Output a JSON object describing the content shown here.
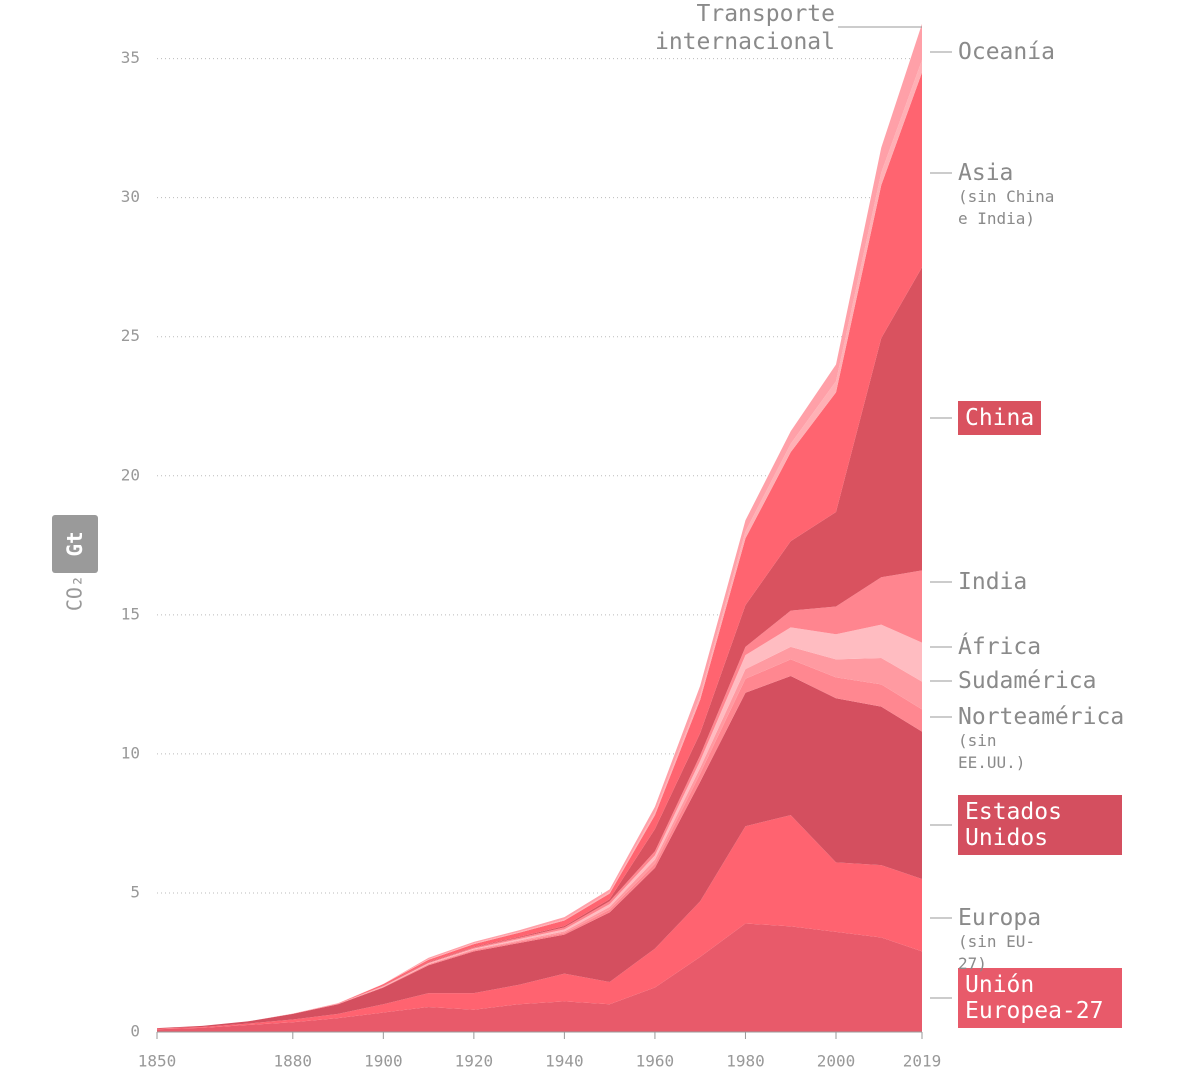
{
  "chart_data": {
    "type": "stacked_area",
    "y_label": "CO₂",
    "y_unit": "Gt",
    "x": [
      1850,
      1860,
      1870,
      1880,
      1890,
      1900,
      1910,
      1920,
      1930,
      1940,
      1950,
      1960,
      1970,
      1980,
      1990,
      2000,
      2010,
      2019
    ],
    "xlim": [
      1850,
      2019
    ],
    "xticks": [
      1850,
      1880,
      1900,
      1920,
      1940,
      1960,
      1980,
      2000,
      2019
    ],
    "ylim": [
      0,
      37
    ],
    "yticks": [
      0,
      5,
      10,
      15,
      20,
      25,
      30,
      35
    ],
    "grid": true,
    "series": [
      {
        "name": "Unión Europea-27",
        "color": "#e85a6a",
        "label_box": true,
        "values": [
          0.1,
          0.15,
          0.25,
          0.35,
          0.5,
          0.7,
          0.9,
          0.8,
          1.0,
          1.1,
          1.0,
          1.6,
          2.7,
          3.9,
          3.8,
          3.6,
          3.4,
          2.9
        ]
      },
      {
        "name": "Europa",
        "note": "(sin EU-27)",
        "color": "#ff6370",
        "values": [
          0.02,
          0.03,
          0.05,
          0.1,
          0.15,
          0.3,
          0.5,
          0.6,
          0.7,
          1.0,
          0.8,
          1.4,
          2.0,
          3.5,
          4.0,
          2.5,
          2.6,
          2.6
        ]
      },
      {
        "name": "Estados Unidos",
        "color": "#d44f5f",
        "label_box": true,
        "values": [
          0.02,
          0.04,
          0.08,
          0.2,
          0.35,
          0.6,
          1.0,
          1.5,
          1.5,
          1.4,
          2.5,
          2.9,
          4.3,
          4.8,
          5.0,
          5.9,
          5.7,
          5.3
        ]
      },
      {
        "name": "Norteamérica",
        "note": "(sin EE.UU.)",
        "color": "#ff8790",
        "values": [
          0,
          0,
          0,
          0.01,
          0.01,
          0.02,
          0.03,
          0.04,
          0.05,
          0.06,
          0.1,
          0.15,
          0.3,
          0.5,
          0.6,
          0.75,
          0.8,
          0.8
        ]
      },
      {
        "name": "Sudamérica",
        "color": "#ff9aa1",
        "values": [
          0,
          0,
          0,
          0,
          0,
          0.01,
          0.02,
          0.03,
          0.04,
          0.06,
          0.1,
          0.15,
          0.2,
          0.35,
          0.45,
          0.65,
          0.95,
          1.0
        ]
      },
      {
        "name": "África",
        "color": "#ffbcc1",
        "values": [
          0,
          0,
          0,
          0,
          0,
          0.01,
          0.02,
          0.03,
          0.05,
          0.07,
          0.1,
          0.15,
          0.25,
          0.5,
          0.7,
          0.9,
          1.2,
          1.4
        ]
      },
      {
        "name": "India",
        "color": "#ff858f",
        "values": [
          0,
          0,
          0,
          0,
          0.01,
          0.02,
          0.03,
          0.04,
          0.05,
          0.07,
          0.1,
          0.15,
          0.2,
          0.3,
          0.6,
          1.0,
          1.7,
          2.6
        ]
      },
      {
        "name": "China",
        "color": "#d9525f",
        "label_box": true,
        "values": [
          0,
          0,
          0,
          0,
          0,
          0.01,
          0.02,
          0.02,
          0.03,
          0.05,
          0.08,
          0.8,
          0.8,
          1.5,
          2.5,
          3.4,
          8.6,
          10.9
        ]
      },
      {
        "name": "Asia",
        "note": "(sin China e India)",
        "color": "#ff6470",
        "values": [
          0,
          0,
          0,
          0,
          0.01,
          0.05,
          0.08,
          0.1,
          0.15,
          0.2,
          0.2,
          0.5,
          1.2,
          2.4,
          3.2,
          4.3,
          5.5,
          7.0
        ]
      },
      {
        "name": "Oceanía",
        "color": "#ffb0b5",
        "values": [
          0,
          0,
          0,
          0,
          0.01,
          0.01,
          0.02,
          0.03,
          0.03,
          0.04,
          0.05,
          0.1,
          0.15,
          0.25,
          0.3,
          0.4,
          0.45,
          0.45
        ]
      },
      {
        "name": "Transporte internacional",
        "color": "#ffa0a8",
        "values": [
          0,
          0,
          0,
          0,
          0,
          0,
          0.05,
          0.05,
          0.06,
          0.08,
          0.1,
          0.2,
          0.35,
          0.4,
          0.45,
          0.6,
          0.9,
          1.3
        ]
      }
    ]
  }
}
